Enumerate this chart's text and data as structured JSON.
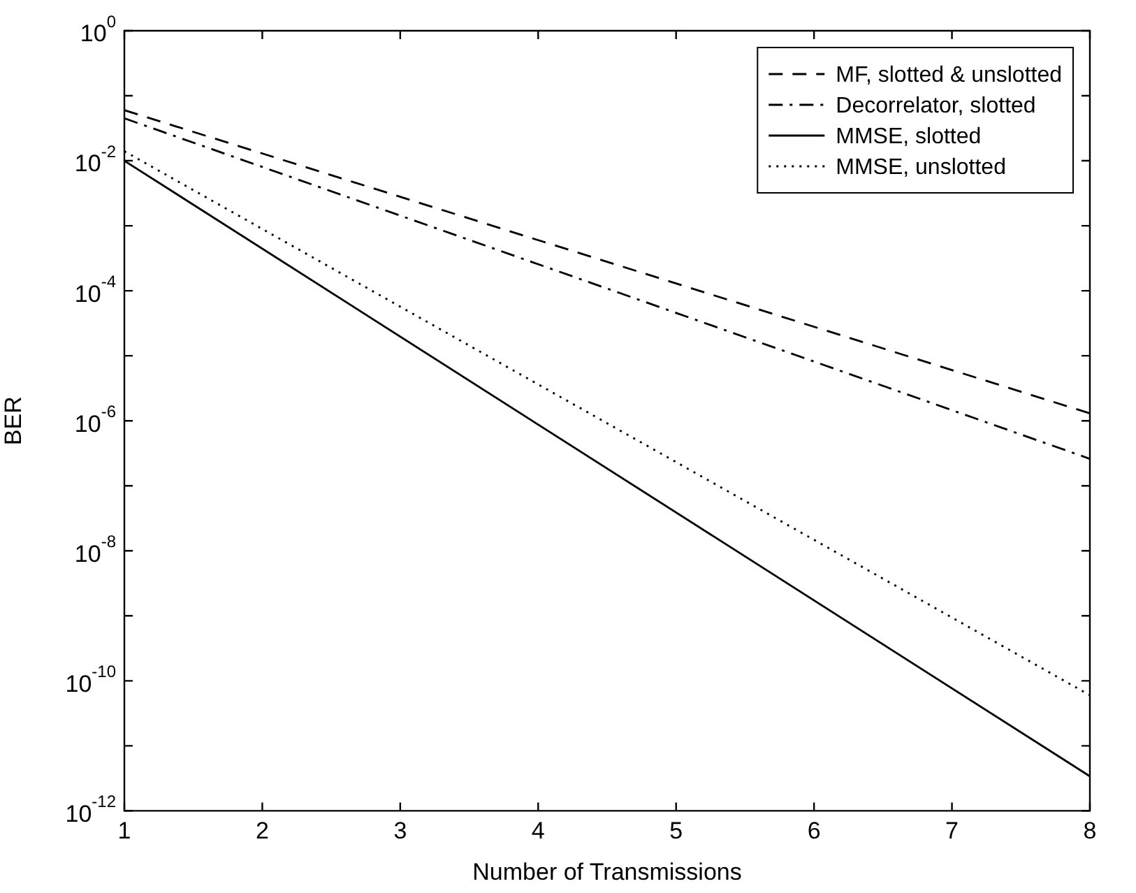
{
  "chart_data": {
    "type": "line",
    "xlabel": "Number of Transmissions",
    "ylabel": "BER",
    "log": "y",
    "grid": false,
    "legend": "top right",
    "marker": "none",
    "xlim": [
      1,
      8
    ],
    "xticks": [
      1,
      2,
      3,
      4,
      5,
      6,
      7,
      8
    ],
    "ylim": [
      1e-12,
      1
    ],
    "yticks": [
      {
        "value": 1,
        "label": "10$^{0}$"
      },
      {
        "value": 0.1,
        "label": null
      },
      {
        "value": 0.01,
        "label": "10$^{-2}$"
      },
      {
        "value": 0.001,
        "label": null
      },
      {
        "value": 0.0001,
        "label": "10$^{-4}$"
      },
      {
        "value": 1e-05,
        "label": null
      },
      {
        "value": 1e-06,
        "label": "10$^{-6}$"
      },
      {
        "value": 1e-07,
        "label": null
      },
      {
        "value": 1e-08,
        "label": "10$^{-8}$"
      },
      {
        "value": 1e-09,
        "label": null
      },
      {
        "value": 1e-10,
        "label": "10$^{-10}$"
      },
      {
        "value": 1e-11,
        "label": null
      },
      {
        "value": 1e-12,
        "label": "10$^{-12}$"
      }
    ],
    "x": [
      1,
      8
    ],
    "series": [
      {
        "name": "MF, slotted & unslotted",
        "color": "#000000",
        "line_style": "dashed",
        "values": [
          0.06,
          1.3e-06
        ]
      },
      {
        "name": "Decorrelator, slotted",
        "color": "#000000",
        "line_style": "dashdot",
        "values": [
          0.045,
          2.6e-07
        ]
      },
      {
        "name": "MMSE, slotted",
        "color": "#000000",
        "line_style": "solid",
        "values": [
          0.01,
          3.4e-12
        ]
      },
      {
        "name": "MMSE, unslotted",
        "color": "#000000",
        "line_style": "dotted",
        "values": [
          0.014,
          6e-11
        ]
      }
    ]
  }
}
